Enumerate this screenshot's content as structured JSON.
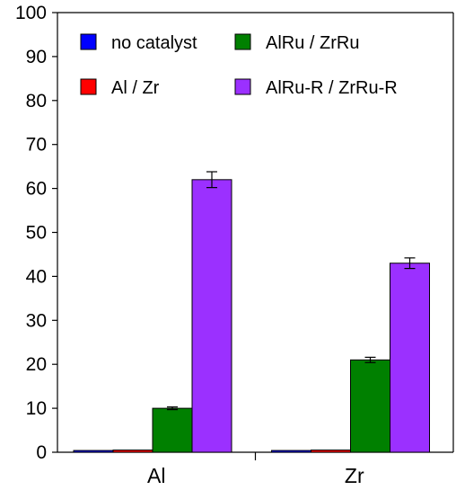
{
  "chart_data": {
    "type": "bar",
    "title": "",
    "xlabel": "",
    "ylabel": "",
    "ylim": [
      0,
      100
    ],
    "yticks": [
      0,
      10,
      20,
      30,
      40,
      50,
      60,
      70,
      80,
      90,
      100
    ],
    "categories": [
      "Al",
      "Zr"
    ],
    "series": [
      {
        "name": "no catalyst",
        "color": "#0000ff",
        "values": [
          0.4,
          0.4
        ],
        "errors": [
          0,
          0
        ]
      },
      {
        "name": "Al / Zr",
        "color": "#ff0000",
        "values": [
          0.5,
          0.5
        ],
        "errors": [
          0,
          0
        ]
      },
      {
        "name": "AlRu / ZrRu",
        "color": "#008000",
        "values": [
          10,
          21
        ],
        "errors": [
          0.3,
          0.6
        ]
      },
      {
        "name": "AlRu-R / ZrRu-R",
        "color": "#9b30ff",
        "values": [
          62,
          43
        ],
        "errors": [
          1.8,
          1.2
        ]
      }
    ],
    "legend": {
      "placement": "top-left",
      "columns": 2
    },
    "grid": false
  }
}
